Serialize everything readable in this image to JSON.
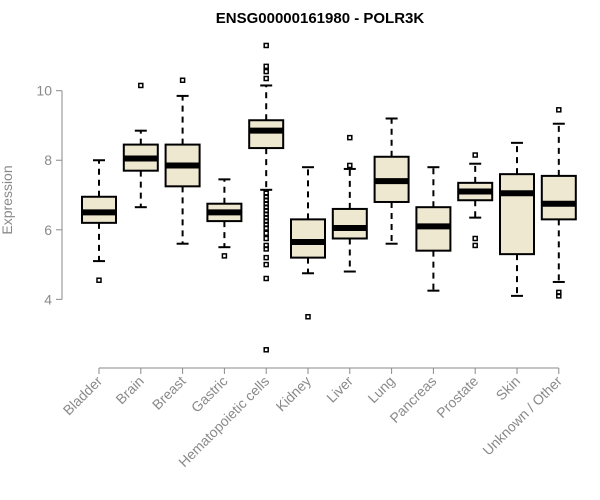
{
  "chart_data": {
    "type": "boxplot",
    "title": "ENSG00000161980 - POLR3K",
    "xlabel": "",
    "ylabel": "Expression",
    "ylim": [
      2.4,
      11.4
    ],
    "yticks": [
      4,
      6,
      8,
      10
    ],
    "categories": [
      "Bladder",
      "Brain",
      "Breast",
      "Gastric",
      "Hematopoietic cells",
      "Kidney",
      "Liver",
      "Lung",
      "Pancreas",
      "Prostate",
      "Skin",
      "Unknown / Other"
    ],
    "boxes": [
      {
        "name": "Bladder",
        "whisker_low": 5.1,
        "q1": 6.2,
        "median": 6.5,
        "q3": 6.95,
        "whisker_high": 8.0,
        "outliers": [
          4.55
        ]
      },
      {
        "name": "Brain",
        "whisker_low": 6.65,
        "q1": 7.7,
        "median": 8.05,
        "q3": 8.45,
        "whisker_high": 8.85,
        "outliers": [
          10.15
        ]
      },
      {
        "name": "Breast",
        "whisker_low": 5.6,
        "q1": 7.25,
        "median": 7.85,
        "q3": 8.45,
        "whisker_high": 9.85,
        "outliers": [
          10.3
        ]
      },
      {
        "name": "Gastric",
        "whisker_low": 5.5,
        "q1": 6.25,
        "median": 6.5,
        "q3": 6.75,
        "whisker_high": 7.45,
        "outliers": [
          5.25
        ]
      },
      {
        "name": "Hematopoietic cells",
        "whisker_low": 7.15,
        "q1": 8.35,
        "median": 8.85,
        "q3": 9.15,
        "whisker_high": 10.15,
        "outliers": [
          11.3,
          10.7,
          10.55,
          10.35,
          7.05,
          6.95,
          6.85,
          6.75,
          6.65,
          6.55,
          6.45,
          6.35,
          6.25,
          6.15,
          6.05,
          5.9,
          5.75,
          5.55,
          5.45,
          5.2,
          5.0,
          4.6,
          2.55
        ]
      },
      {
        "name": "Kidney",
        "whisker_low": 4.75,
        "q1": 5.2,
        "median": 5.65,
        "q3": 6.3,
        "whisker_high": 7.8,
        "outliers": [
          3.5
        ]
      },
      {
        "name": "Liver",
        "whisker_low": 4.8,
        "q1": 5.75,
        "median": 6.05,
        "q3": 6.6,
        "whisker_high": 7.75,
        "outliers": [
          8.65,
          7.85
        ]
      },
      {
        "name": "Lung",
        "whisker_low": 5.6,
        "q1": 6.8,
        "median": 7.4,
        "q3": 8.1,
        "whisker_high": 9.2,
        "outliers": []
      },
      {
        "name": "Pancreas",
        "whisker_low": 4.25,
        "q1": 5.4,
        "median": 6.1,
        "q3": 6.65,
        "whisker_high": 7.8,
        "outliers": []
      },
      {
        "name": "Prostate",
        "whisker_low": 6.35,
        "q1": 6.85,
        "median": 7.1,
        "q3": 7.35,
        "whisker_high": 7.9,
        "outliers": [
          8.15,
          5.75,
          5.55
        ]
      },
      {
        "name": "Skin",
        "whisker_low": 4.1,
        "q1": 5.3,
        "median": 7.05,
        "q3": 7.6,
        "whisker_high": 8.5,
        "outliers": []
      },
      {
        "name": "Unknown / Other",
        "whisker_low": 4.5,
        "q1": 6.3,
        "median": 6.75,
        "q3": 7.55,
        "whisker_high": 9.05,
        "outliers": [
          9.45,
          4.2,
          4.1
        ]
      }
    ],
    "colors": {
      "box_fill": "#efe8d0",
      "box_stroke": "#000000",
      "axis": "#8a8a8a"
    }
  }
}
